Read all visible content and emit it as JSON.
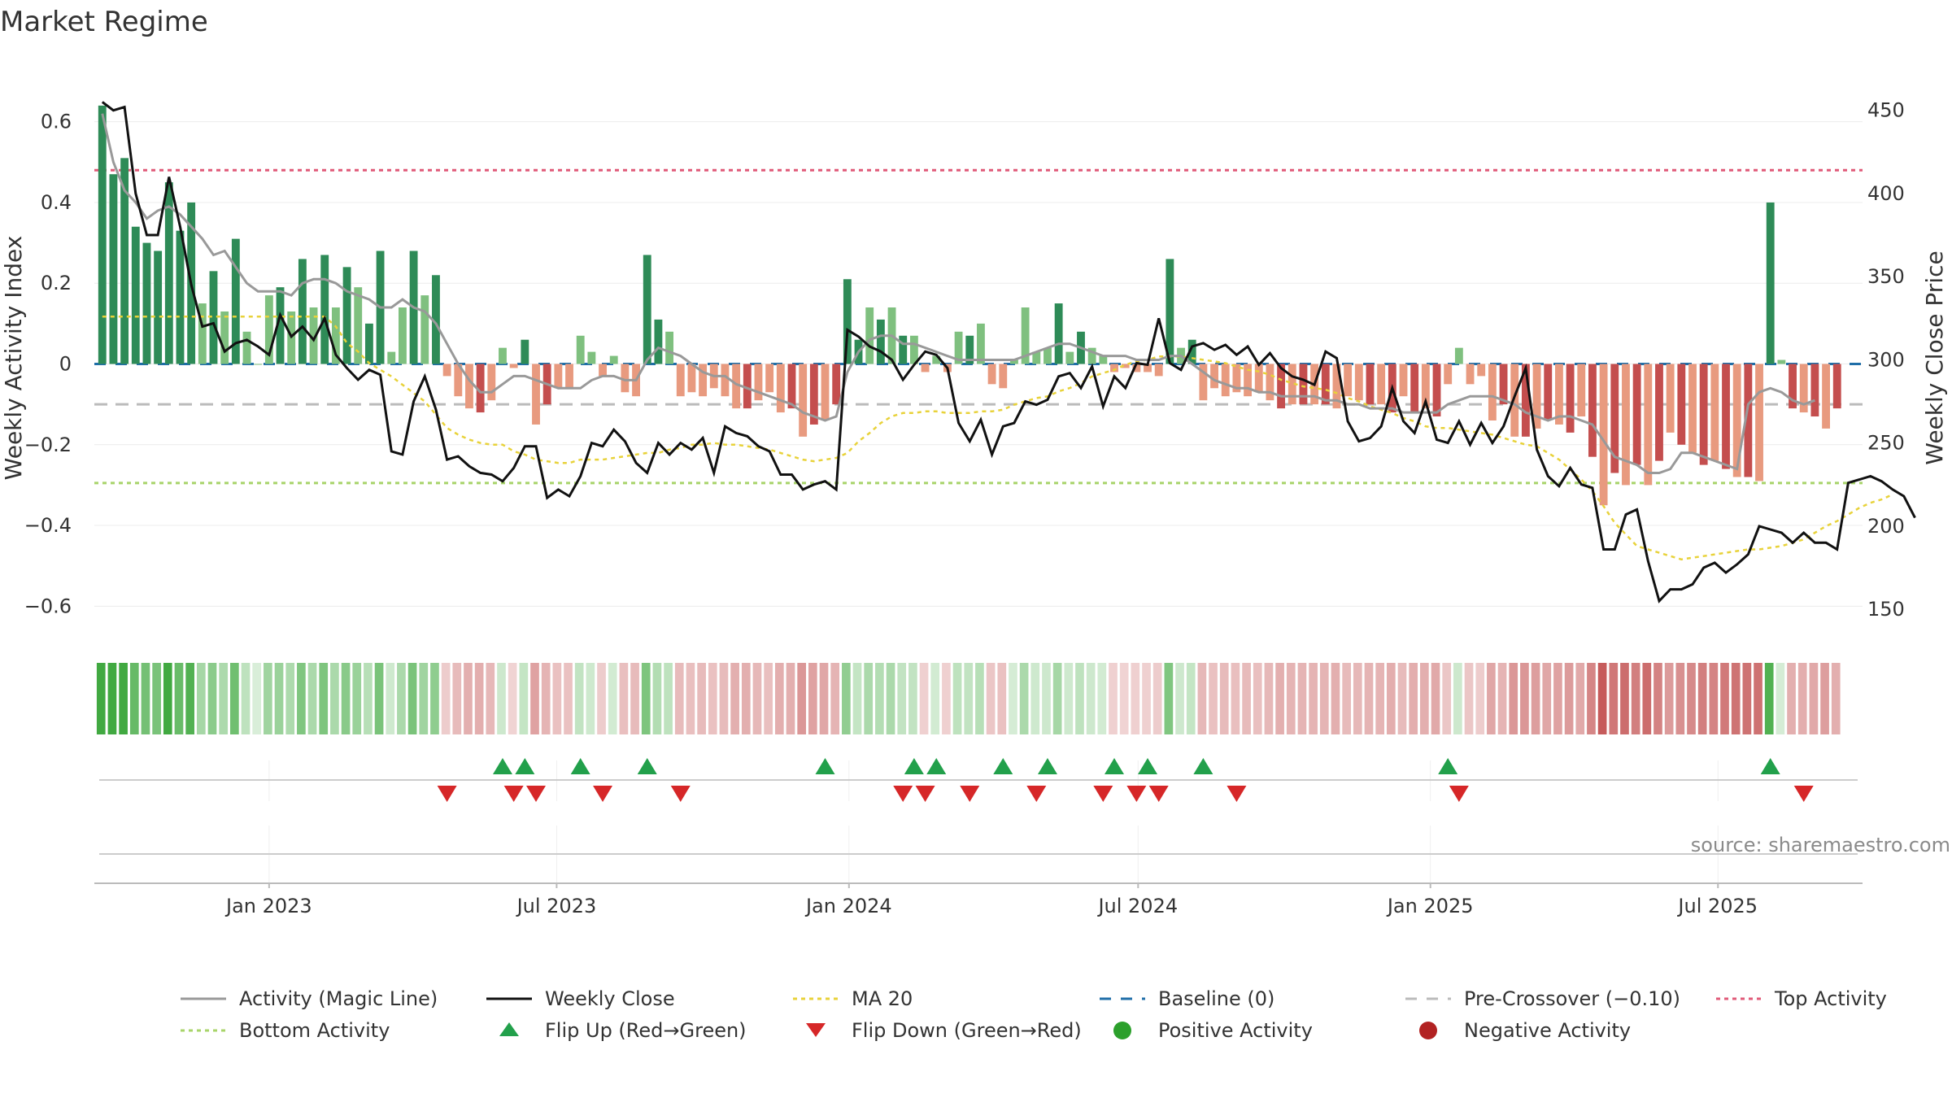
{
  "chart_data": {
    "type": "bar",
    "title": "Market Regime",
    "ylabel_left": "Weekly Activity Index",
    "ylabel_right": "Weekly Close Price",
    "source": "source: sharemaestro.com",
    "ylim_left": [
      -0.69,
      0.69
    ],
    "ylim_right": [
      130,
      465
    ],
    "yticks_left": [
      0.6,
      0.4,
      0.2,
      0,
      -0.2,
      -0.4,
      -0.6
    ],
    "yticks_left_labels": [
      "0.6",
      "0.4",
      "0.2",
      "0",
      "−0.2",
      "−0.4",
      "−0.6"
    ],
    "yticks_right": [
      450,
      400,
      350,
      300,
      250,
      200,
      150
    ],
    "xlim": [
      "2022-09-13",
      "2025-09-30"
    ],
    "x_ticks": [
      {
        "date": "2023-01-01",
        "label": "Jan 2023"
      },
      {
        "date": "2023-07-01",
        "label": "Jul 2023"
      },
      {
        "date": "2024-01-01",
        "label": "Jan 2024"
      },
      {
        "date": "2024-07-01",
        "label": "Jul 2024"
      },
      {
        "date": "2025-01-01",
        "label": "Jan 2025"
      },
      {
        "date": "2025-07-01",
        "label": "Jul 2025"
      }
    ],
    "reference_lines": {
      "top_activity": 0.48,
      "baseline": 0,
      "pre_crossover": -0.1,
      "bottom_activity": -0.295
    },
    "start_date": "2022-09-18",
    "week_step_days": 7,
    "activity_index": [
      0.64,
      0.47,
      0.51,
      0.34,
      0.3,
      0.28,
      0.45,
      0.33,
      0.4,
      0.15,
      0.23,
      0.13,
      0.31,
      0.08,
      0.0,
      0.17,
      0.19,
      0.13,
      0.26,
      0.14,
      0.27,
      0.14,
      0.24,
      0.19,
      0.1,
      0.28,
      0.03,
      0.14,
      0.28,
      0.17,
      0.22,
      -0.03,
      -0.08,
      -0.11,
      -0.12,
      -0.09,
      0.04,
      -0.01,
      0.06,
      -0.15,
      -0.1,
      -0.06,
      -0.06,
      0.07,
      0.03,
      -0.03,
      0.02,
      -0.07,
      -0.08,
      0.27,
      0.11,
      0.08,
      -0.08,
      -0.07,
      -0.08,
      -0.06,
      -0.08,
      -0.11,
      -0.11,
      -0.09,
      -0.07,
      -0.12,
      -0.11,
      -0.18,
      -0.15,
      -0.14,
      -0.1,
      0.21,
      0.06,
      0.14,
      0.11,
      0.14,
      0.07,
      0.07,
      -0.02,
      0.02,
      -0.02,
      0.08,
      0.07,
      0.1,
      -0.05,
      -0.06,
      0.01,
      0.14,
      0.03,
      0.04,
      0.15,
      0.03,
      0.08,
      0.04,
      0.02,
      -0.02,
      -0.01,
      -0.02,
      -0.02,
      -0.03,
      0.26,
      0.04,
      0.06,
      -0.09,
      -0.06,
      -0.08,
      -0.07,
      -0.08,
      -0.07,
      -0.09,
      -0.11,
      -0.1,
      -0.1,
      -0.1,
      -0.1,
      -0.11,
      -0.08,
      -0.09,
      -0.1,
      -0.1,
      -0.12,
      -0.08,
      -0.12,
      -0.11,
      -0.13,
      -0.05,
      0.04,
      -0.05,
      -0.03,
      -0.14,
      -0.1,
      -0.18,
      -0.18,
      -0.16,
      -0.14,
      -0.15,
      -0.17,
      -0.13,
      -0.23,
      -0.35,
      -0.27,
      -0.3,
      -0.25,
      -0.3,
      -0.24,
      -0.17,
      -0.2,
      -0.22,
      -0.25,
      -0.24,
      -0.26,
      -0.28,
      -0.28,
      -0.29,
      0.4,
      0.01,
      -0.11,
      -0.12,
      -0.13,
      -0.16,
      -0.11
    ],
    "activity_magic_line": [
      0.62,
      0.5,
      0.43,
      0.4,
      0.36,
      0.38,
      0.39,
      0.37,
      0.34,
      0.31,
      0.27,
      0.28,
      0.24,
      0.2,
      0.18,
      0.18,
      0.18,
      0.17,
      0.2,
      0.21,
      0.21,
      0.2,
      0.18,
      0.17,
      0.16,
      0.14,
      0.14,
      0.16,
      0.14,
      0.13,
      0.1,
      0.05,
      0.0,
      -0.04,
      -0.07,
      -0.07,
      -0.05,
      -0.03,
      -0.03,
      -0.04,
      -0.05,
      -0.06,
      -0.06,
      -0.06,
      -0.04,
      -0.03,
      -0.03,
      -0.04,
      -0.04,
      0.01,
      0.04,
      0.03,
      0.02,
      0.0,
      -0.02,
      -0.03,
      -0.03,
      -0.05,
      -0.06,
      -0.07,
      -0.08,
      -0.09,
      -0.1,
      -0.12,
      -0.13,
      -0.14,
      -0.13,
      -0.02,
      0.03,
      0.06,
      0.07,
      0.07,
      0.05,
      0.05,
      0.04,
      0.03,
      0.02,
      0.01,
      0.01,
      0.01,
      0.01,
      0.01,
      0.01,
      0.02,
      0.03,
      0.04,
      0.05,
      0.05,
      0.04,
      0.03,
      0.02,
      0.02,
      0.02,
      0.01,
      0.01,
      0.01,
      0.02,
      0.02,
      0.0,
      -0.02,
      -0.04,
      -0.05,
      -0.06,
      -0.06,
      -0.07,
      -0.07,
      -0.08,
      -0.08,
      -0.08,
      -0.08,
      -0.09,
      -0.09,
      -0.1,
      -0.1,
      -0.11,
      -0.11,
      -0.11,
      -0.12,
      -0.12,
      -0.12,
      -0.12,
      -0.1,
      -0.09,
      -0.08,
      -0.08,
      -0.08,
      -0.09,
      -0.1,
      -0.12,
      -0.13,
      -0.14,
      -0.13,
      -0.13,
      -0.14,
      -0.15,
      -0.19,
      -0.23,
      -0.24,
      -0.25,
      -0.27,
      -0.27,
      -0.26,
      -0.22,
      -0.22,
      -0.23,
      -0.24,
      -0.25,
      -0.26,
      -0.1,
      -0.07,
      -0.06,
      -0.07,
      -0.09,
      -0.1,
      -0.09
    ],
    "weekly_close": [
      455,
      450,
      452,
      400,
      375,
      375,
      410,
      380,
      345,
      320,
      322,
      305,
      310,
      312,
      308,
      303,
      327,
      314,
      320,
      312,
      325,
      303,
      295,
      288,
      294,
      291,
      245,
      243,
      275,
      290,
      270,
      240,
      242,
      236,
      232,
      231,
      227,
      235,
      248,
      248,
      217,
      222,
      218,
      230,
      250,
      248,
      258,
      251,
      238,
      232,
      250,
      243,
      250,
      246,
      253,
      232,
      260,
      256,
      254,
      248,
      245,
      231,
      231,
      222,
      225,
      227,
      222,
      318,
      314,
      308,
      305,
      300,
      288,
      297,
      305,
      303,
      295,
      262,
      251,
      264,
      243,
      260,
      262,
      275,
      273,
      276,
      290,
      292,
      283,
      296,
      272,
      290,
      283,
      298,
      297,
      325,
      298,
      294,
      308,
      310,
      306,
      309,
      303,
      308,
      297,
      304,
      295,
      290,
      288,
      285,
      305,
      301,
      263,
      251,
      253,
      260,
      283,
      263,
      256,
      275,
      252,
      250,
      263,
      249,
      262,
      250,
      260,
      278,
      295,
      246,
      230,
      224,
      235,
      225,
      223,
      186,
      186,
      207,
      210,
      179,
      155,
      162,
      162,
      165,
      175,
      178,
      172,
      177,
      183,
      200,
      198,
      196,
      190,
      196,
      190,
      190,
      186,
      226,
      228,
      230,
      227,
      222,
      218,
      205
    ],
    "ma20": [
      326,
      326,
      326,
      326,
      326,
      326,
      326,
      326,
      326,
      326,
      326,
      326,
      326,
      326,
      326,
      326,
      326,
      326,
      326,
      326,
      326,
      320,
      310,
      305,
      298,
      294,
      290,
      285,
      280,
      275,
      267,
      259,
      255,
      252,
      250,
      249,
      249,
      245,
      243,
      240,
      239,
      238,
      238,
      240,
      240,
      240,
      241,
      242,
      243,
      244,
      244,
      246,
      247,
      249,
      249,
      250,
      249,
      249,
      248,
      247,
      246,
      244,
      242,
      240,
      239,
      240,
      241,
      244,
      251,
      256,
      262,
      266,
      268,
      268,
      269,
      269,
      268,
      268,
      268,
      269,
      269,
      270,
      273,
      275,
      277,
      278,
      281,
      283,
      286,
      290,
      292,
      294,
      297,
      299,
      300,
      302,
      302,
      302,
      301,
      300,
      299,
      298,
      296,
      294,
      293,
      291,
      288,
      286,
      284,
      283,
      282,
      280,
      277,
      275,
      272,
      270,
      268,
      265,
      263,
      260,
      259,
      259,
      258,
      257,
      256,
      255,
      253,
      251,
      249,
      248,
      244,
      240,
      234,
      228,
      221,
      212,
      202,
      195,
      188,
      186,
      184,
      182,
      180,
      181,
      182,
      183,
      184,
      185,
      186,
      186,
      187,
      188,
      190,
      192,
      196,
      200,
      203,
      207,
      211,
      214,
      216,
      219
    ]
  },
  "flip_up_weeks": [
    36,
    38,
    43,
    49,
    65,
    73,
    75,
    81,
    85,
    91,
    94,
    99,
    121,
    150
  ],
  "flip_down_weeks": [
    31,
    37,
    39,
    45,
    52,
    72,
    74,
    78,
    84,
    90,
    93,
    95,
    102,
    122,
    153
  ],
  "colors": {
    "green_strong": "#2e8b57",
    "green_light": "#7fc07f",
    "red_strong": "#c44e4e",
    "red_light": "#e89a7f",
    "magic_line": "#999999",
    "weekly_close": "#111111",
    "ma20": "#e8d23a",
    "baseline": "#1f6ea8",
    "pre_crossover": "#bbbbbb",
    "top_activity": "#e05a78",
    "bottom_activity": "#a8d46a",
    "flip_up": "#22a04b",
    "flip_down": "#d62728",
    "positive_dot": "#2ca02c",
    "negative_dot": "#b22222"
  },
  "legend": [
    {
      "key": "magic",
      "label": "Activity (Magic Line)",
      "icon": "line-solid-gray"
    },
    {
      "key": "close",
      "label": "Weekly Close",
      "icon": "line-solid-black"
    },
    {
      "key": "ma20",
      "label": "MA 20",
      "icon": "line-dotted-yellow"
    },
    {
      "key": "baseline",
      "label": "Baseline (0)",
      "icon": "line-dashed-blue"
    },
    {
      "key": "precross",
      "label": "Pre-Crossover (−0.10)",
      "icon": "line-dashed-gray"
    },
    {
      "key": "top",
      "label": "Top Activity",
      "icon": "line-dotted-pink"
    },
    {
      "key": "bottom",
      "label": "Bottom Activity",
      "icon": "line-dotted-green"
    },
    {
      "key": "flipup",
      "label": "Flip Up (Red→Green)",
      "icon": "triangle-up-green"
    },
    {
      "key": "flipdown",
      "label": "Flip Down (Green→Red)",
      "icon": "triangle-down-red"
    },
    {
      "key": "pos",
      "label": "Positive Activity",
      "icon": "circle-green"
    },
    {
      "key": "neg",
      "label": "Negative Activity",
      "icon": "circle-red"
    }
  ]
}
